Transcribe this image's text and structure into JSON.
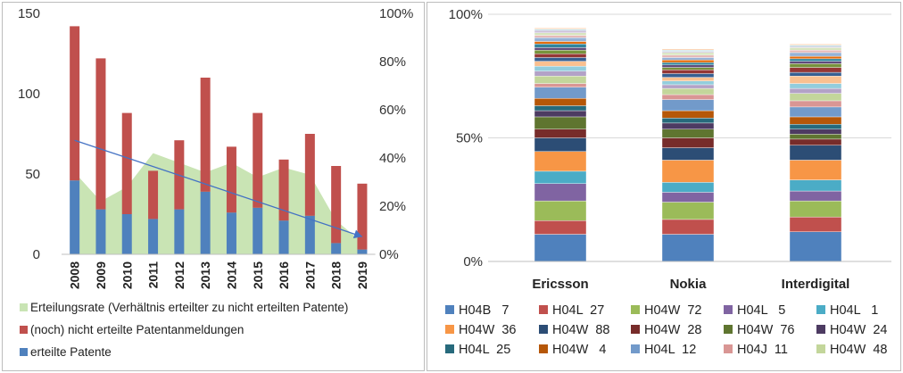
{
  "chart_data": [
    {
      "type": "bar",
      "subtype": "stacked bar with area on secondary axis and trendline",
      "categories": [
        "2008",
        "2009",
        "2010",
        "2011",
        "2012",
        "2013",
        "2014",
        "2015",
        "2016",
        "2017",
        "2018",
        "2019"
      ],
      "ylim": [
        0,
        150
      ],
      "y_ticks": [
        "0",
        "50",
        "100",
        "150"
      ],
      "y2lim": [
        0,
        1
      ],
      "y2_ticks": [
        "0%",
        "20%",
        "40%",
        "60%",
        "80%",
        "100%"
      ],
      "grid": false,
      "legend_position": "bottom",
      "series": [
        {
          "name": "Erteilungsrate (Verhältnis erteilter zu nicht erteilten Patente)",
          "kind": "area",
          "axis": "secondary",
          "color": "#c9e4b4",
          "values": [
            0.34,
            0.22,
            0.28,
            0.42,
            0.38,
            0.34,
            0.38,
            0.32,
            0.36,
            0.33,
            0.14,
            0.05
          ]
        },
        {
          "name": "(noch) nicht erteilte Patentanmeldungen",
          "kind": "bar",
          "axis": "primary",
          "color": "#c0504d",
          "values": [
            96,
            94,
            63,
            30,
            43,
            71,
            41,
            59,
            38,
            51,
            48,
            41
          ]
        },
        {
          "name": "erteilte Patente",
          "kind": "bar",
          "axis": "primary",
          "color": "#4f81bd",
          "values": [
            46,
            28,
            25,
            22,
            28,
            39,
            26,
            29,
            21,
            24,
            7,
            3
          ]
        }
      ],
      "trendline": {
        "axis": "primary",
        "color": "#4472c4",
        "start": 71,
        "end": 11
      }
    },
    {
      "type": "bar",
      "subtype": "stacked bar (percent)",
      "categories": [
        "Ericsson",
        "Nokia",
        "Interdigital"
      ],
      "ylim": [
        0,
        1
      ],
      "y_ticks": [
        "0%",
        "50%",
        "100%"
      ],
      "grid": true,
      "legend_position": "bottom",
      "series": [
        {
          "name": "H04B   7",
          "color": "#4f81bd",
          "values": [
            0.11,
            0.11,
            0.12
          ]
        },
        {
          "name": "H04L  27",
          "color": "#c0504d",
          "values": [
            0.055,
            0.06,
            0.06
          ]
        },
        {
          "name": "H04W  72",
          "color": "#9bbb59",
          "values": [
            0.08,
            0.07,
            0.065
          ]
        },
        {
          "name": "H04L   5",
          "color": "#8064a2",
          "values": [
            0.07,
            0.04,
            0.04
          ]
        },
        {
          "name": "H04L   1",
          "color": "#4bacc6",
          "values": [
            0.05,
            0.04,
            0.045
          ]
        },
        {
          "name": "H04W  36",
          "color": "#f79646",
          "values": [
            0.08,
            0.09,
            0.08
          ]
        },
        {
          "name": "H04W  88",
          "color": "#2c4d75",
          "values": [
            0.055,
            0.05,
            0.06
          ]
        },
        {
          "name": "H04W  28",
          "color": "#772c2a",
          "values": [
            0.035,
            0.04,
            0.025
          ]
        },
        {
          "name": "H04W  76",
          "color": "#5f7530",
          "values": [
            0.05,
            0.035,
            0.02
          ]
        },
        {
          "name": "H04W  24",
          "color": "#4d3b62",
          "values": [
            0.025,
            0.025,
            0.02
          ]
        },
        {
          "name": "H04L  25",
          "color": "#276a7c",
          "values": [
            0.02,
            0.02,
            0.02
          ]
        },
        {
          "name": "H04W   4",
          "color": "#b65708",
          "values": [
            0.03,
            0.03,
            0.03
          ]
        },
        {
          "name": "H04L  12",
          "color": "#729aca",
          "values": [
            0.045,
            0.045,
            0.04
          ]
        },
        {
          "name": "H04J  11",
          "color": "#d99694",
          "values": [
            0.015,
            0.02,
            0.025
          ]
        },
        {
          "name": "H04W  48",
          "color": "#c3d69b",
          "values": [
            0.03,
            0.025,
            0.03
          ]
        },
        {
          "name": "",
          "color": "#b3a2c7",
          "values": [
            0.02,
            0.015,
            0.02
          ]
        },
        {
          "name": "",
          "color": "#93cddd",
          "values": [
            0.02,
            0.015,
            0.02
          ]
        },
        {
          "name": "",
          "color": "#fac090",
          "values": [
            0.02,
            0.015,
            0.03
          ]
        },
        {
          "name": "",
          "color": "#376092",
          "values": [
            0.015,
            0.015,
            0.015
          ]
        },
        {
          "name": "",
          "color": "#953735",
          "values": [
            0.015,
            0.015,
            0.02
          ]
        },
        {
          "name": "",
          "color": "#77933c",
          "values": [
            0.015,
            0.01,
            0.015
          ]
        },
        {
          "name": "",
          "color": "#604a7b",
          "values": [
            0.01,
            0.01,
            0.01
          ]
        },
        {
          "name": "",
          "color": "#31859c",
          "values": [
            0.015,
            0.01,
            0.01
          ]
        },
        {
          "name": "",
          "color": "#e46c0a",
          "values": [
            0.01,
            0.01,
            0.01
          ]
        },
        {
          "name": "",
          "color": "#95b3d7",
          "values": [
            0.015,
            0.01,
            0.015
          ]
        },
        {
          "name": "",
          "color": "#e6b9b8",
          "values": [
            0.01,
            0.01,
            0.01
          ]
        },
        {
          "name": "",
          "color": "#d7e4bd",
          "values": [
            0.01,
            0.01,
            0.01
          ]
        },
        {
          "name": "",
          "color": "#ccc1da",
          "values": [
            0.01,
            0.005,
            0.005
          ]
        },
        {
          "name": "",
          "color": "#b7dee8",
          "values": [
            0.005,
            0.005,
            0.005
          ]
        },
        {
          "name": "",
          "color": "#fcd5b5",
          "values": [
            0.005,
            0.005,
            0.005
          ]
        }
      ]
    }
  ]
}
